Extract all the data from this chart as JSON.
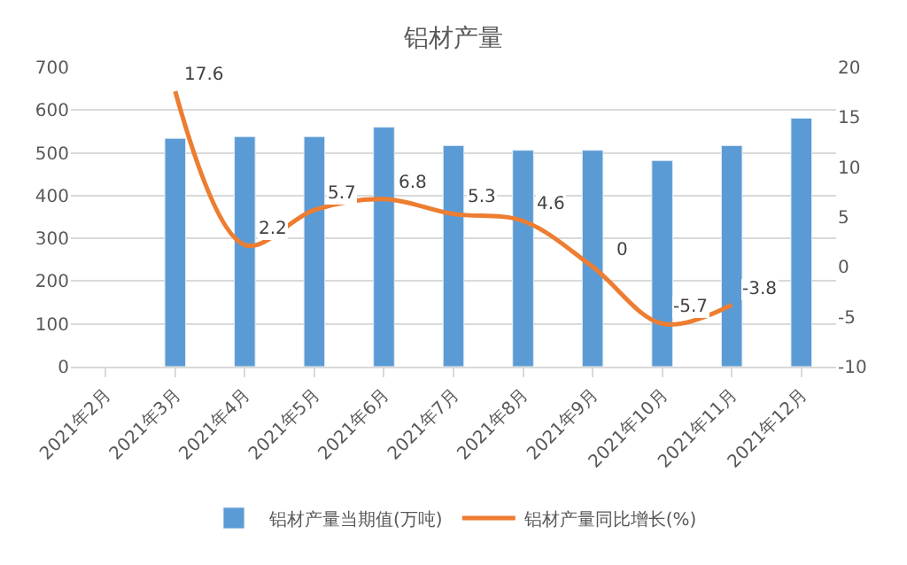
{
  "chart_data": {
    "type": "bar",
    "title": "铝材产量",
    "categories": [
      "2021年2月",
      "2021年3月",
      "2021年4月",
      "2021年5月",
      "2021年6月",
      "2021年7月",
      "2021年8月",
      "2021年9月",
      "2021年10月",
      "2021年11月",
      "2021年12月"
    ],
    "series": [
      {
        "name": "铝材产量当期值(万吨)",
        "color": "#5b9bd5",
        "values": [
          null,
          534,
          538,
          538,
          560,
          517,
          506,
          506,
          482,
          517,
          581
        ]
      },
      {
        "name": "铝材产量同比增长(%)",
        "color": "#ed7d31",
        "type": "line",
        "axis": "y2",
        "values": [
          null,
          17.6,
          2.2,
          5.7,
          6.8,
          5.3,
          4.6,
          0,
          -5.7,
          -3.8,
          null
        ],
        "value_labels": [
          null,
          "17.6",
          "2.2",
          "5.7",
          "6.8",
          "5.3",
          "4.6",
          "0",
          "-5.7",
          "-3.8",
          null
        ]
      }
    ],
    "ylim": [
      0,
      700
    ],
    "yticks": [
      0,
      100,
      200,
      300,
      400,
      500,
      600,
      700
    ],
    "y2lim": [
      -10,
      20
    ],
    "y2ticks": [
      -10,
      -5,
      0,
      5,
      10,
      15,
      20
    ],
    "grid": "y",
    "legend": "bottom",
    "marker": "none",
    "line_style": "solid"
  }
}
